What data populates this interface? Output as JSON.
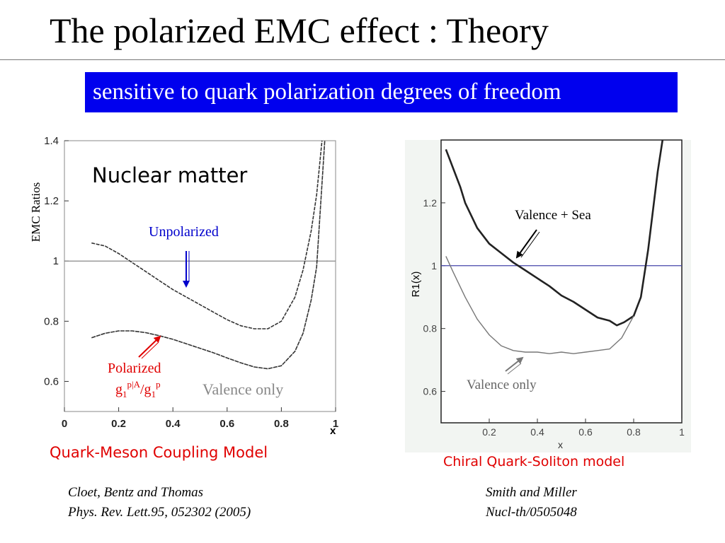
{
  "slide": {
    "title": "The polarized EMC effect : Theory",
    "banner": "sensitive to quark polarization degrees of freedom",
    "left_model": "Quark-Meson Coupling Model",
    "right_model": "Chiral Quark-Soliton model",
    "left_ref": {
      "authors": "Cloet, Bentz and Thomas",
      "journal": "Phys. Rev. Lett.95, 052302 (2005)"
    },
    "right_ref": {
      "authors": "Smith and Miller",
      "journal": "Nucl-th/0505048"
    }
  },
  "colors": {
    "banner_bg": "#0000ee",
    "unpolarized": "#0000cc",
    "polarized": "#e00000",
    "reference_line": "#4444aa",
    "valence": "#777777"
  },
  "chart_data": [
    {
      "type": "line",
      "ylabel": "EMC Ratios",
      "xlabel": "x",
      "xlim": [
        0,
        1
      ],
      "ylim": [
        0.5,
        1.4
      ],
      "xticks": [
        0,
        0.2,
        0.4,
        0.6,
        0.8,
        1
      ],
      "xtick_labels": [
        "0",
        "0.2",
        "0.4",
        "0.6",
        "0.8",
        "1"
      ],
      "yticks": [
        0.6,
        0.8,
        1,
        1.2,
        1.4
      ],
      "ytick_labels": [
        "0.6",
        "0.8",
        "1",
        "1.2",
        "1.4"
      ],
      "annotations": {
        "panel": "Nuclear matter",
        "unpolarized": "Unpolarized",
        "polarized": "Polarized",
        "ratio_g": "g",
        "ratio_sub1": "1",
        "ratio_sup1": "p|A",
        "ratio_slash": "/g",
        "ratio_sub2": "1",
        "ratio_sup2": "p",
        "valence": "Valence only"
      },
      "reference_line": 1,
      "series": [
        {
          "x": [
            0.1,
            0.15,
            0.2,
            0.25,
            0.3,
            0.35,
            0.4,
            0.45,
            0.5,
            0.55,
            0.6,
            0.65,
            0.7,
            0.75,
            0.8,
            0.85,
            0.88,
            0.91,
            0.93,
            0.95
          ],
          "y": [
            1.06,
            1.05,
            1.025,
            0.995,
            0.965,
            0.935,
            0.905,
            0.88,
            0.855,
            0.83,
            0.805,
            0.785,
            0.775,
            0.775,
            0.8,
            0.88,
            0.97,
            1.1,
            1.22,
            1.4
          ]
        },
        {
          "x": [
            0.1,
            0.15,
            0.2,
            0.25,
            0.3,
            0.35,
            0.4,
            0.45,
            0.5,
            0.55,
            0.6,
            0.65,
            0.7,
            0.75,
            0.8,
            0.85,
            0.88,
            0.91,
            0.93,
            0.96
          ],
          "y": [
            0.745,
            0.76,
            0.768,
            0.768,
            0.762,
            0.752,
            0.74,
            0.725,
            0.71,
            0.695,
            0.678,
            0.662,
            0.648,
            0.642,
            0.652,
            0.7,
            0.76,
            0.87,
            0.98,
            1.4
          ]
        }
      ]
    },
    {
      "type": "line",
      "ylabel": "R1(x)",
      "xlabel": "x",
      "xlim": [
        0,
        1
      ],
      "ylim": [
        0.5,
        1.4
      ],
      "xticks": [
        0.2,
        0.4,
        0.6,
        0.8,
        1
      ],
      "xtick_labels": [
        "0.2",
        "0.4",
        "0.6",
        "0.8",
        "1"
      ],
      "yticks": [
        0.6,
        0.8,
        1,
        1.2
      ],
      "ytick_labels": [
        "0.6",
        "0.8",
        "1",
        "1.2"
      ],
      "annotations": {
        "valence_sea": "Valence + Sea",
        "valence": "Valence only"
      },
      "reference_line": 1,
      "series": [
        {
          "x": [
            0.02,
            0.05,
            0.08,
            0.1,
            0.15,
            0.2,
            0.25,
            0.3,
            0.35,
            0.4,
            0.45,
            0.5,
            0.55,
            0.6,
            0.65,
            0.7,
            0.73,
            0.76,
            0.8,
            0.83,
            0.86,
            0.9,
            0.92
          ],
          "y": [
            1.37,
            1.31,
            1.25,
            1.2,
            1.12,
            1.07,
            1.04,
            1.01,
            0.985,
            0.96,
            0.935,
            0.905,
            0.885,
            0.86,
            0.835,
            0.825,
            0.81,
            0.82,
            0.84,
            0.9,
            1.05,
            1.3,
            1.4
          ]
        },
        {
          "x": [
            0.02,
            0.05,
            0.1,
            0.15,
            0.2,
            0.25,
            0.3,
            0.35,
            0.4,
            0.45,
            0.5,
            0.55,
            0.6,
            0.65,
            0.7,
            0.75,
            0.8
          ],
          "y": [
            1.03,
            0.98,
            0.9,
            0.83,
            0.78,
            0.745,
            0.73,
            0.725,
            0.725,
            0.72,
            0.725,
            0.72,
            0.725,
            0.73,
            0.735,
            0.77,
            0.84
          ]
        }
      ]
    }
  ]
}
